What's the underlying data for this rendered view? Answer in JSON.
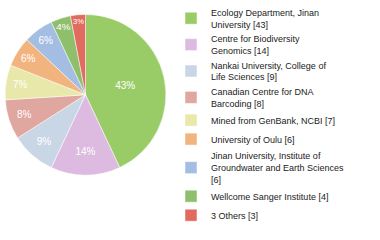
{
  "chart_data": {
    "type": "pie",
    "categories": [
      "Ecology Department, Jinan University [43]",
      "Centre for Biodiversity Genomics [14]",
      "Nankai University, College of Life Sciences [9]",
      "Canadian Centre for DNA Barcoding [8]",
      "Mined from GenBank, NCBI [7]",
      "University of Oulu [6]",
      "Jinan University, Institute of Groundwater and Earth Sciences [6]",
      "Wellcome Sanger Institute [4]",
      "3 Others [3]"
    ],
    "values": [
      43,
      14,
      9,
      8,
      7,
      6,
      6,
      4,
      3
    ],
    "value_labels": [
      "43%",
      "14%",
      "9%",
      "8%",
      "7%",
      "6%",
      "6%",
      "4%",
      "3%"
    ],
    "colors": [
      "#99cc66",
      "#ddbbe0",
      "#c9d6e6",
      "#e0a6a0",
      "#e8e8aa",
      "#f2b47e",
      "#a3bde3",
      "#8fbf6b",
      "#e06b5e"
    ],
    "data_labels": true,
    "legend": "right"
  }
}
